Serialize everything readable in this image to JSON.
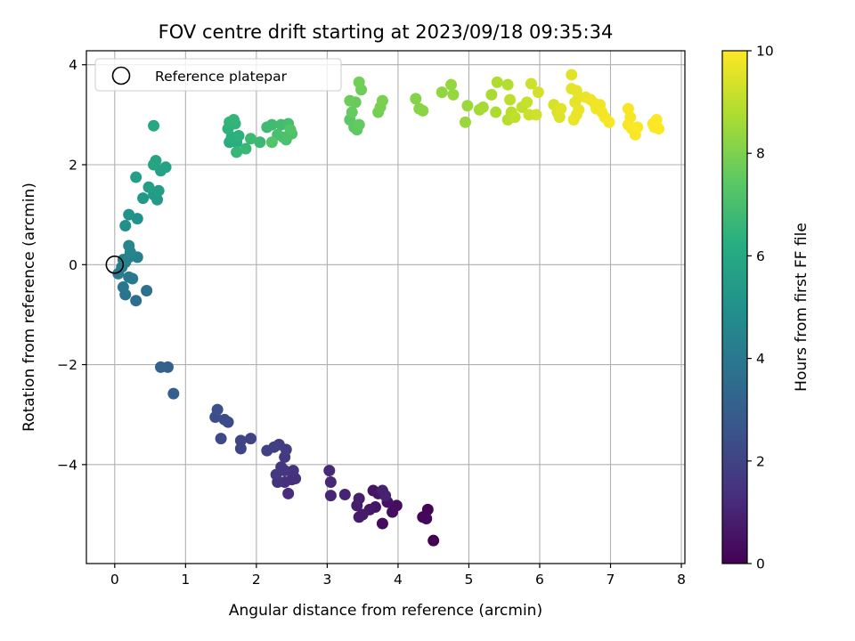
{
  "chart_data": {
    "type": "scatter",
    "title": "FOV centre drift starting at 2023/09/18 09:35:34",
    "xlabel": "Angular distance from reference (arcmin)",
    "ylabel": "Rotation from reference (arcmin)",
    "xlim": [
      -0.4,
      8.05
    ],
    "ylim": [
      -5.98,
      4.28
    ],
    "xticks": [
      0,
      1,
      2,
      3,
      4,
      5,
      6,
      7,
      8
    ],
    "yticks": [
      -4,
      -2,
      0,
      2,
      4
    ],
    "grid": true,
    "legend": {
      "placement": "top-left",
      "entries": [
        "Reference platepar"
      ]
    },
    "reference_point": {
      "x": 0,
      "y": 0
    },
    "colorbar": {
      "label": "Hours from first FF file",
      "colormap": "viridis",
      "range": [
        0,
        10
      ],
      "ticks": [
        0,
        2,
        4,
        6,
        8,
        10
      ]
    },
    "points": [
      {
        "x": 4.5,
        "y": -5.52,
        "t": 0.0
      },
      {
        "x": 4.42,
        "y": -4.9,
        "t": 0.1
      },
      {
        "x": 4.35,
        "y": -5.05,
        "t": 0.15
      },
      {
        "x": 4.4,
        "y": -5.08,
        "t": 0.2
      },
      {
        "x": 3.78,
        "y": -5.18,
        "t": 0.3
      },
      {
        "x": 3.92,
        "y": -4.95,
        "t": 0.35
      },
      {
        "x": 3.98,
        "y": -4.82,
        "t": 0.4
      },
      {
        "x": 3.85,
        "y": -4.75,
        "t": 0.45
      },
      {
        "x": 3.72,
        "y": -4.58,
        "t": 0.5
      },
      {
        "x": 3.65,
        "y": -4.52,
        "t": 0.55
      },
      {
        "x": 3.68,
        "y": -4.85,
        "t": 0.6
      },
      {
        "x": 3.6,
        "y": -4.9,
        "t": 0.65
      },
      {
        "x": 3.5,
        "y": -5.0,
        "t": 0.7
      },
      {
        "x": 3.45,
        "y": -5.05,
        "t": 0.75
      },
      {
        "x": 3.42,
        "y": -4.82,
        "t": 0.8
      },
      {
        "x": 3.45,
        "y": -4.68,
        "t": 0.85
      },
      {
        "x": 3.78,
        "y": -4.52,
        "t": 0.9
      },
      {
        "x": 3.82,
        "y": -4.62,
        "t": 0.95
      },
      {
        "x": 3.25,
        "y": -4.6,
        "t": 1.0
      },
      {
        "x": 3.05,
        "y": -4.62,
        "t": 1.05
      },
      {
        "x": 3.05,
        "y": -4.35,
        "t": 1.1
      },
      {
        "x": 3.03,
        "y": -4.12,
        "t": 1.15
      },
      {
        "x": 2.45,
        "y": -4.58,
        "t": 1.25
      },
      {
        "x": 2.5,
        "y": -4.3,
        "t": 1.3
      },
      {
        "x": 2.55,
        "y": -4.28,
        "t": 1.35
      },
      {
        "x": 2.4,
        "y": -4.35,
        "t": 1.4
      },
      {
        "x": 2.3,
        "y": -4.35,
        "t": 1.45
      },
      {
        "x": 2.52,
        "y": -4.12,
        "t": 1.5
      },
      {
        "x": 2.4,
        "y": -4.12,
        "t": 1.55
      },
      {
        "x": 2.35,
        "y": -4.05,
        "t": 1.6
      },
      {
        "x": 2.28,
        "y": -4.2,
        "t": 1.65
      },
      {
        "x": 2.4,
        "y": -3.85,
        "t": 1.7
      },
      {
        "x": 2.42,
        "y": -3.7,
        "t": 1.75
      },
      {
        "x": 2.32,
        "y": -3.6,
        "t": 1.8
      },
      {
        "x": 2.25,
        "y": -3.65,
        "t": 1.85
      },
      {
        "x": 2.15,
        "y": -3.72,
        "t": 1.9
      },
      {
        "x": 1.92,
        "y": -3.48,
        "t": 2.0
      },
      {
        "x": 1.78,
        "y": -3.52,
        "t": 2.05
      },
      {
        "x": 1.78,
        "y": -3.68,
        "t": 2.1
      },
      {
        "x": 1.5,
        "y": -3.48,
        "t": 2.2
      },
      {
        "x": 1.6,
        "y": -3.15,
        "t": 2.25
      },
      {
        "x": 1.55,
        "y": -3.1,
        "t": 2.3
      },
      {
        "x": 1.42,
        "y": -3.05,
        "t": 2.35
      },
      {
        "x": 1.45,
        "y": -2.9,
        "t": 2.4
      },
      {
        "x": 0.83,
        "y": -2.58,
        "t": 3.0
      },
      {
        "x": 0.75,
        "y": -2.05,
        "t": 3.1
      },
      {
        "x": 0.65,
        "y": -2.05,
        "t": 3.15
      },
      {
        "x": 0.3,
        "y": -0.72,
        "t": 3.6
      },
      {
        "x": 0.45,
        "y": -0.52,
        "t": 3.7
      },
      {
        "x": 0.15,
        "y": -0.6,
        "t": 3.8
      },
      {
        "x": 0.12,
        "y": -0.45,
        "t": 3.9
      },
      {
        "x": 0.25,
        "y": -0.28,
        "t": 4.0
      },
      {
        "x": 0.2,
        "y": -0.25,
        "t": 4.05
      },
      {
        "x": 0.05,
        "y": -0.18,
        "t": 4.1
      },
      {
        "x": 0.1,
        "y": -0.05,
        "t": 4.15
      },
      {
        "x": 0.12,
        "y": 0.1,
        "t": 4.2
      },
      {
        "x": 0.2,
        "y": 0.15,
        "t": 4.25
      },
      {
        "x": 0.32,
        "y": 0.15,
        "t": 4.3
      },
      {
        "x": 0.15,
        "y": 0.05,
        "t": 4.35
      },
      {
        "x": 0.22,
        "y": 0.25,
        "t": 4.5
      },
      {
        "x": 0.2,
        "y": 0.38,
        "t": 4.6
      },
      {
        "x": 0.15,
        "y": 0.78,
        "t": 4.9
      },
      {
        "x": 0.32,
        "y": 0.92,
        "t": 5.0
      },
      {
        "x": 0.2,
        "y": 1.0,
        "t": 5.1
      },
      {
        "x": 0.4,
        "y": 1.33,
        "t": 5.3
      },
      {
        "x": 0.6,
        "y": 1.3,
        "t": 5.4
      },
      {
        "x": 0.55,
        "y": 1.4,
        "t": 5.45
      },
      {
        "x": 0.62,
        "y": 1.48,
        "t": 5.5
      },
      {
        "x": 0.48,
        "y": 1.55,
        "t": 5.55
      },
      {
        "x": 0.3,
        "y": 1.75,
        "t": 5.6
      },
      {
        "x": 0.65,
        "y": 1.88,
        "t": 5.7
      },
      {
        "x": 0.72,
        "y": 1.95,
        "t": 5.75
      },
      {
        "x": 0.55,
        "y": 2.0,
        "t": 5.8
      },
      {
        "x": 0.58,
        "y": 2.08,
        "t": 5.85
      },
      {
        "x": 0.55,
        "y": 2.78,
        "t": 6.0
      },
      {
        "x": 1.62,
        "y": 2.45,
        "t": 6.2
      },
      {
        "x": 1.72,
        "y": 2.45,
        "t": 6.25
      },
      {
        "x": 1.65,
        "y": 2.55,
        "t": 6.3
      },
      {
        "x": 1.75,
        "y": 2.58,
        "t": 6.35
      },
      {
        "x": 1.6,
        "y": 2.72,
        "t": 6.4
      },
      {
        "x": 1.7,
        "y": 2.82,
        "t": 6.45
      },
      {
        "x": 1.62,
        "y": 2.85,
        "t": 6.5
      },
      {
        "x": 1.68,
        "y": 2.9,
        "t": 6.55
      },
      {
        "x": 1.72,
        "y": 2.25,
        "t": 6.6
      },
      {
        "x": 1.85,
        "y": 2.32,
        "t": 6.65
      },
      {
        "x": 2.05,
        "y": 2.45,
        "t": 6.7
      },
      {
        "x": 1.92,
        "y": 2.52,
        "t": 6.75
      },
      {
        "x": 2.15,
        "y": 2.75,
        "t": 6.8
      },
      {
        "x": 2.22,
        "y": 2.8,
        "t": 6.85
      },
      {
        "x": 2.35,
        "y": 2.8,
        "t": 6.9
      },
      {
        "x": 2.45,
        "y": 2.82,
        "t": 6.95
      },
      {
        "x": 2.3,
        "y": 2.6,
        "t": 7.0
      },
      {
        "x": 2.38,
        "y": 2.55,
        "t": 7.05
      },
      {
        "x": 2.42,
        "y": 2.5,
        "t": 7.1
      },
      {
        "x": 2.5,
        "y": 2.62,
        "t": 7.15
      },
      {
        "x": 2.48,
        "y": 2.7,
        "t": 7.2
      },
      {
        "x": 2.22,
        "y": 2.45,
        "t": 7.25
      },
      {
        "x": 3.32,
        "y": 2.9,
        "t": 7.4
      },
      {
        "x": 3.38,
        "y": 2.75,
        "t": 7.45
      },
      {
        "x": 3.42,
        "y": 2.7,
        "t": 7.5
      },
      {
        "x": 3.45,
        "y": 2.8,
        "t": 7.55
      },
      {
        "x": 3.35,
        "y": 3.05,
        "t": 7.6
      },
      {
        "x": 3.4,
        "y": 3.25,
        "t": 7.65
      },
      {
        "x": 3.32,
        "y": 3.28,
        "t": 7.7
      },
      {
        "x": 3.48,
        "y": 3.5,
        "t": 7.75
      },
      {
        "x": 3.45,
        "y": 3.65,
        "t": 7.8
      },
      {
        "x": 3.72,
        "y": 3.05,
        "t": 7.85
      },
      {
        "x": 3.75,
        "y": 3.15,
        "t": 7.9
      },
      {
        "x": 3.78,
        "y": 3.28,
        "t": 7.95
      },
      {
        "x": 4.25,
        "y": 3.32,
        "t": 8.1
      },
      {
        "x": 4.3,
        "y": 3.12,
        "t": 8.15
      },
      {
        "x": 4.35,
        "y": 3.08,
        "t": 8.2
      },
      {
        "x": 4.62,
        "y": 3.45,
        "t": 8.3
      },
      {
        "x": 4.75,
        "y": 3.6,
        "t": 8.35
      },
      {
        "x": 4.78,
        "y": 3.4,
        "t": 8.4
      },
      {
        "x": 4.95,
        "y": 2.85,
        "t": 8.45
      },
      {
        "x": 4.98,
        "y": 3.18,
        "t": 8.5
      },
      {
        "x": 5.15,
        "y": 3.1,
        "t": 8.6
      },
      {
        "x": 5.2,
        "y": 3.15,
        "t": 8.65
      },
      {
        "x": 5.32,
        "y": 3.4,
        "t": 8.7
      },
      {
        "x": 5.38,
        "y": 3.05,
        "t": 8.75
      },
      {
        "x": 5.4,
        "y": 3.65,
        "t": 8.8
      },
      {
        "x": 5.55,
        "y": 3.6,
        "t": 8.85
      },
      {
        "x": 5.55,
        "y": 2.9,
        "t": 8.9
      },
      {
        "x": 5.6,
        "y": 3.05,
        "t": 8.95
      },
      {
        "x": 5.58,
        "y": 3.3,
        "t": 9.0
      },
      {
        "x": 5.65,
        "y": 2.95,
        "t": 9.05
      },
      {
        "x": 5.75,
        "y": 3.15,
        "t": 9.1
      },
      {
        "x": 5.82,
        "y": 3.25,
        "t": 9.15
      },
      {
        "x": 5.85,
        "y": 3.0,
        "t": 9.2
      },
      {
        "x": 5.88,
        "y": 3.62,
        "t": 9.25
      },
      {
        "x": 5.95,
        "y": 3.0,
        "t": 9.3
      },
      {
        "x": 5.98,
        "y": 3.45,
        "t": 9.35
      },
      {
        "x": 6.2,
        "y": 3.2,
        "t": 9.4
      },
      {
        "x": 6.25,
        "y": 3.05,
        "t": 9.45
      },
      {
        "x": 6.28,
        "y": 2.95,
        "t": 9.5
      },
      {
        "x": 6.3,
        "y": 3.12,
        "t": 9.55
      },
      {
        "x": 6.45,
        "y": 3.8,
        "t": 9.58
      },
      {
        "x": 6.45,
        "y": 3.52,
        "t": 9.6
      },
      {
        "x": 6.52,
        "y": 3.48,
        "t": 9.62
      },
      {
        "x": 6.55,
        "y": 3.35,
        "t": 9.64
      },
      {
        "x": 6.5,
        "y": 3.25,
        "t": 9.66
      },
      {
        "x": 6.55,
        "y": 3.1,
        "t": 9.68
      },
      {
        "x": 6.52,
        "y": 3.0,
        "t": 9.7
      },
      {
        "x": 6.48,
        "y": 2.9,
        "t": 9.72
      },
      {
        "x": 6.65,
        "y": 3.35,
        "t": 9.74
      },
      {
        "x": 6.72,
        "y": 3.3,
        "t": 9.76
      },
      {
        "x": 6.78,
        "y": 3.22,
        "t": 9.78
      },
      {
        "x": 6.8,
        "y": 3.12,
        "t": 9.8
      },
      {
        "x": 6.85,
        "y": 3.2,
        "t": 9.82
      },
      {
        "x": 6.88,
        "y": 3.05,
        "t": 9.84
      },
      {
        "x": 6.92,
        "y": 2.95,
        "t": 9.86
      },
      {
        "x": 6.98,
        "y": 2.85,
        "t": 9.88
      },
      {
        "x": 7.25,
        "y": 3.12,
        "t": 9.9
      },
      {
        "x": 7.28,
        "y": 2.95,
        "t": 9.91
      },
      {
        "x": 7.25,
        "y": 2.8,
        "t": 9.92
      },
      {
        "x": 7.3,
        "y": 2.72,
        "t": 9.93
      },
      {
        "x": 7.35,
        "y": 2.6,
        "t": 9.94
      },
      {
        "x": 7.38,
        "y": 2.75,
        "t": 9.95
      },
      {
        "x": 7.6,
        "y": 2.82,
        "t": 9.96
      },
      {
        "x": 7.62,
        "y": 2.75,
        "t": 9.97
      },
      {
        "x": 7.65,
        "y": 2.9,
        "t": 9.98
      },
      {
        "x": 7.68,
        "y": 2.72,
        "t": 9.99
      },
      {
        "x": 7.65,
        "y": 2.78,
        "t": 10.0
      }
    ]
  }
}
